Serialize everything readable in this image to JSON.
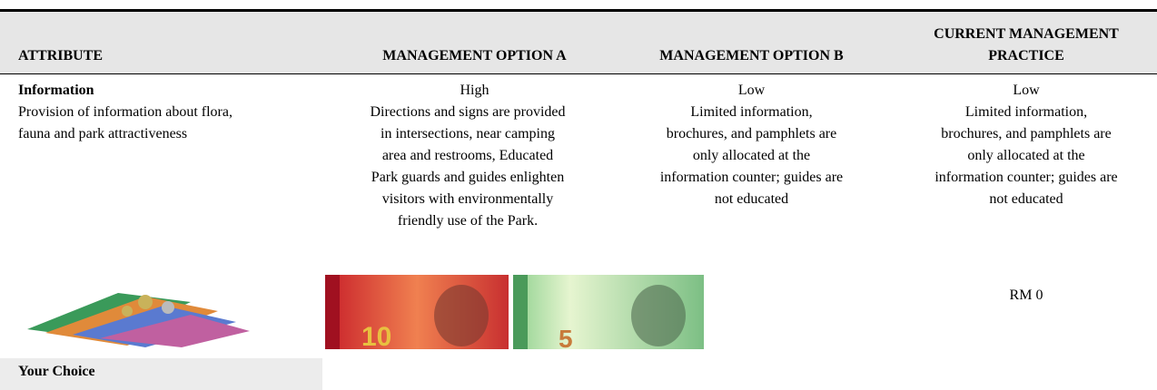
{
  "table": {
    "header": [
      "ATTRIBUTE",
      "MANAGEMENT OPTION A",
      "MANAGEMENT OPTION B",
      "CURRENT MANAGEMENT PRACTICE"
    ],
    "rows": [
      [
        "Information",
        "High",
        "Low",
        "Low"
      ],
      [
        [
          "Provision of information about flora,",
          "fauna and park attractiveness"
        ],
        [
          "Directions and signs are provided",
          "in intersections, near camping",
          "area and restrooms, Educated",
          "Park guards and guides enlighten",
          "visitors with environmentally",
          "friendly use of the Park."
        ],
        [
          "Limited information,",
          "brochures, and pamphlets are",
          "only allocated at the",
          "information counter; guides are",
          "not educated"
        ],
        [
          "Limited information,",
          "brochures, and pamphlets are",
          "only allocated at the",
          "information counter; guides are",
          "not educated"
        ]
      ]
    ],
    "price_row": {
      "current": "RM 0"
    },
    "your_choice": "Your Choice"
  }
}
